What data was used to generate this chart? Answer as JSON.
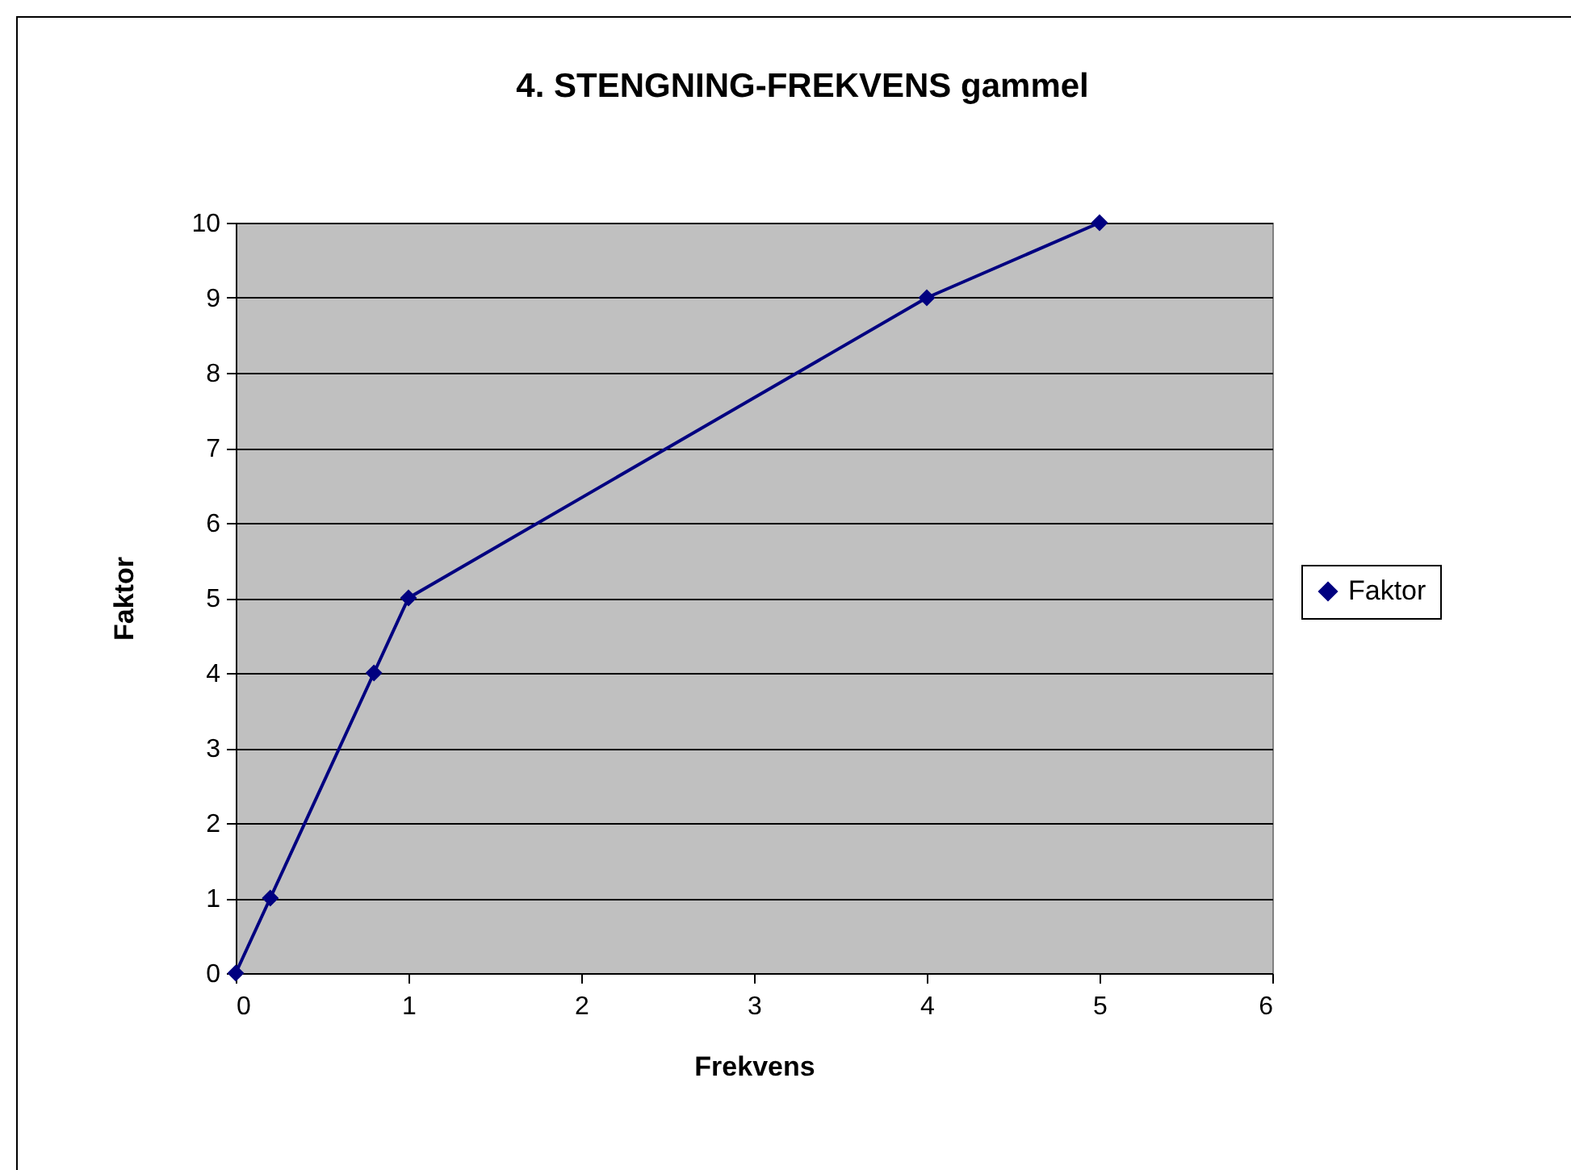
{
  "chart_data": {
    "type": "line",
    "title": "4. STENGNING-FREKVENS gammel",
    "xlabel": "Frekvens",
    "ylabel": "Faktor",
    "x": [
      0,
      0.2,
      0.8,
      1,
      4,
      5
    ],
    "series": [
      {
        "name": "Faktor",
        "color": "#000080",
        "values": [
          0,
          1,
          4,
          5,
          9,
          10
        ]
      }
    ],
    "xlim": [
      0,
      6
    ],
    "xticks": [
      0,
      1,
      2,
      3,
      4,
      5,
      6
    ],
    "ylim": [
      0,
      10
    ],
    "yticks": [
      0,
      1,
      2,
      3,
      4,
      5,
      6,
      7,
      8,
      9,
      10
    ],
    "grid": "y",
    "legend": "right",
    "marker": "diamond",
    "line_style": "solid"
  }
}
